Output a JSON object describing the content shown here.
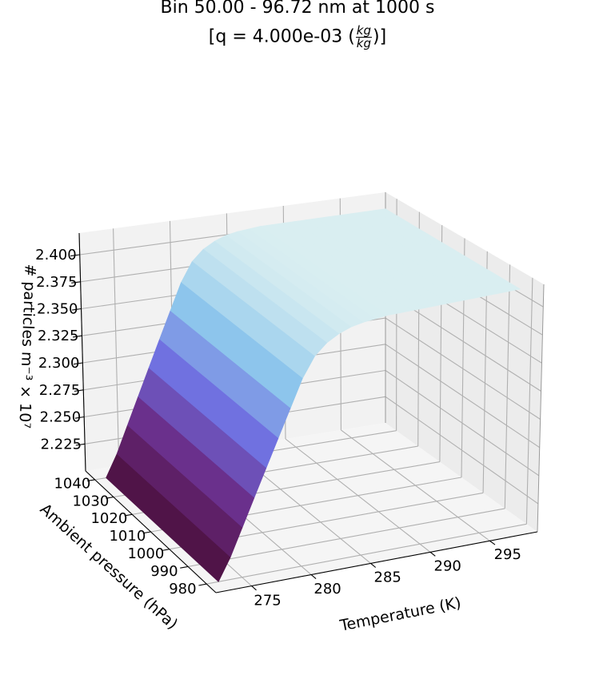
{
  "chart_data": {
    "type": "surface",
    "title": {
      "line1": "Bin 50.00 - 96.72 nm at 1000 s",
      "line2_prefix": "[q = 4.000e-03 (",
      "unit_numerator": "kg",
      "unit_denominator": "kg",
      "line2_suffix": ")]"
    },
    "xlabel": "Temperature (K)",
    "ylabel": "Ambient pressure (hPa)",
    "zlabel": "# particles m⁻³ × 10⁷",
    "x_ticks": [
      275,
      280,
      285,
      290,
      295
    ],
    "y_ticks": [
      980,
      990,
      1000,
      1010,
      1020,
      1030,
      1040
    ],
    "z_ticks": [
      "2.225",
      "2.250",
      "2.275",
      "2.300",
      "2.325",
      "2.350",
      "2.375",
      "2.400"
    ],
    "xlim": [
      272,
      299
    ],
    "ylim": [
      975,
      1045
    ],
    "zlim": [
      2.2,
      2.42
    ],
    "colormap": [
      "#4a0f3a",
      "#6a2a84",
      "#6f6fe0",
      "#8ec7ec",
      "#d9eef1"
    ],
    "grid": true,
    "surface": {
      "temperature": [
        273,
        274,
        275,
        276,
        277,
        278,
        279,
        280,
        281,
        282,
        283,
        284,
        285,
        286,
        287,
        288,
        289,
        290,
        291,
        292,
        293,
        294,
        295,
        296,
        297,
        298
      ],
      "pressure": [
        980,
        1040
      ],
      "z_pressure_980": [
        2.2,
        2.22,
        2.245,
        2.27,
        2.295,
        2.32,
        2.345,
        2.37,
        2.388,
        2.398,
        2.404,
        2.408,
        2.41,
        2.411,
        2.412,
        2.412,
        2.412,
        2.412,
        2.412,
        2.412,
        2.412,
        2.412,
        2.412,
        2.412,
        2.412,
        2.412
      ],
      "z_pressure_1040": [
        2.2,
        2.22,
        2.245,
        2.27,
        2.295,
        2.32,
        2.345,
        2.37,
        2.388,
        2.398,
        2.404,
        2.408,
        2.41,
        2.411,
        2.412,
        2.412,
        2.412,
        2.412,
        2.412,
        2.412,
        2.412,
        2.412,
        2.412,
        2.412,
        2.412,
        2.412
      ]
    }
  }
}
